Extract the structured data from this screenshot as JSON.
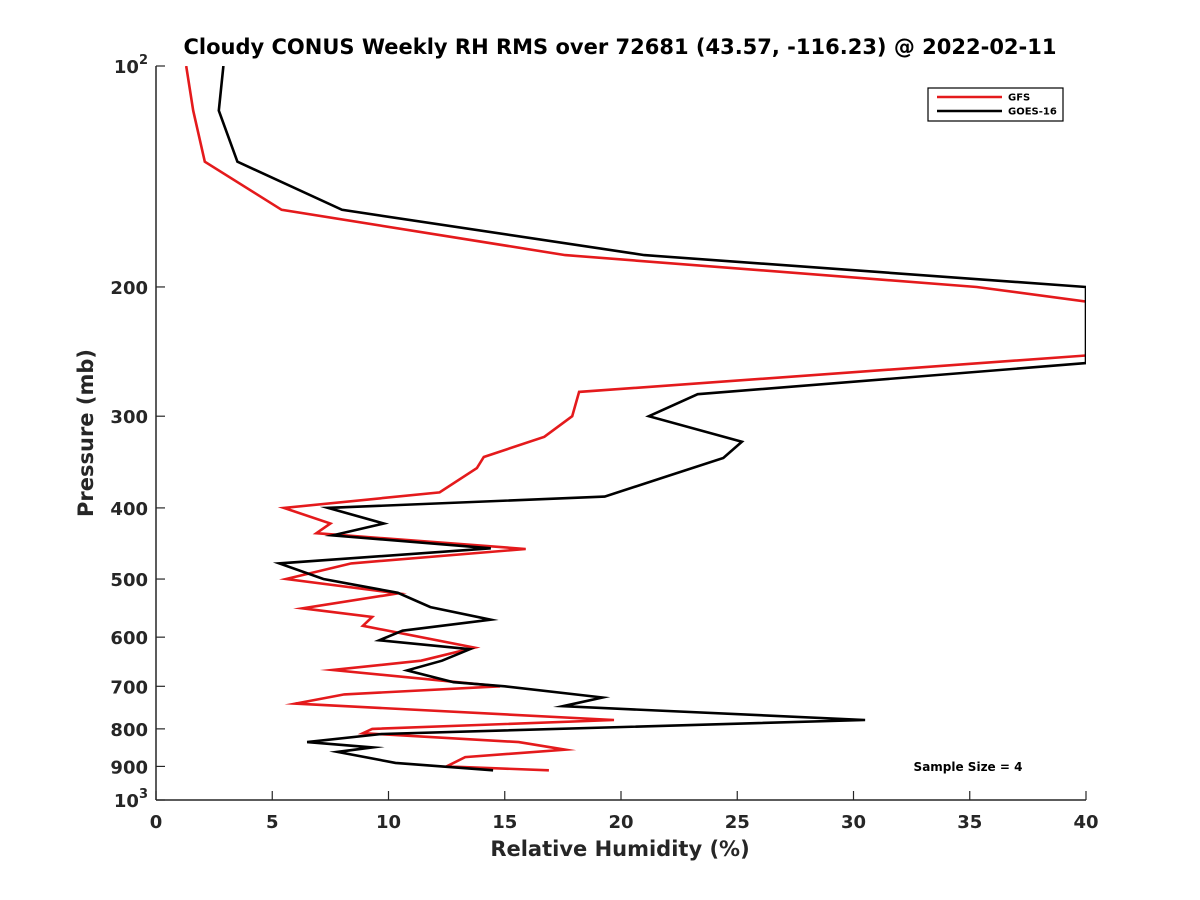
{
  "chart_data": {
    "type": "line",
    "title": "Cloudy CONUS Weekly RH RMS over 72681 (43.57, -116.23) @ 2022-02-11",
    "xlabel": "Relative Humidity (%)",
    "ylabel": "Pressure (mb)",
    "xlim": [
      0,
      40
    ],
    "ylim": [
      100,
      1000
    ],
    "yscale": "log",
    "y_reversed": true,
    "x_ticks": [
      "0",
      "5",
      "10",
      "15",
      "20",
      "25",
      "30",
      "35",
      "40"
    ],
    "y_ticks": [
      {
        "value": 100,
        "base": "10",
        "exp": "2"
      },
      {
        "value": 200,
        "label": "200"
      },
      {
        "value": 300,
        "label": "300"
      },
      {
        "value": 400,
        "label": "400"
      },
      {
        "value": 500,
        "label": "500"
      },
      {
        "value": 600,
        "label": "600"
      },
      {
        "value": 700,
        "label": "700"
      },
      {
        "value": 800,
        "label": "800"
      },
      {
        "value": 900,
        "label": "900"
      },
      {
        "value": 1000,
        "base": "10",
        "exp": "3"
      }
    ],
    "legend_position": "top-right",
    "annotation": "Sample Size = 4",
    "grid": false,
    "series": [
      {
        "name": "GFS",
        "color": "#e41a1c",
        "points": [
          [
            1.3,
            100
          ],
          [
            1.6,
            115
          ],
          [
            2.1,
            135
          ],
          [
            5.4,
            157
          ],
          [
            17.6,
            181
          ],
          [
            35.3,
            200
          ],
          [
            40.3,
            210
          ],
          [
            40.0,
            248
          ],
          [
            18.2,
            278
          ],
          [
            17.9,
            300
          ],
          [
            16.7,
            320
          ],
          [
            14.1,
            341
          ],
          [
            13.8,
            353
          ],
          [
            12.2,
            381
          ],
          [
            5.5,
            400
          ],
          [
            7.5,
            420
          ],
          [
            6.9,
            433
          ],
          [
            15.9,
            455
          ],
          [
            8.4,
            476
          ],
          [
            5.6,
            500
          ],
          [
            10.4,
            523
          ],
          [
            6.3,
            548
          ],
          [
            9.3,
            563
          ],
          [
            8.9,
            579
          ],
          [
            13.7,
            620
          ],
          [
            11.4,
            646
          ],
          [
            7.6,
            665
          ],
          [
            14.8,
            700
          ],
          [
            8.1,
            718
          ],
          [
            6.0,
            739
          ],
          [
            19.7,
            778
          ],
          [
            9.3,
            800
          ],
          [
            8.9,
            811
          ],
          [
            15.6,
            834
          ],
          [
            17.6,
            854
          ],
          [
            13.3,
            874
          ],
          [
            12.5,
            900
          ],
          [
            16.9,
            911
          ]
        ]
      },
      {
        "name": "GOES-16",
        "color": "#000000",
        "points": [
          [
            2.9,
            100
          ],
          [
            2.7,
            115
          ],
          [
            3.5,
            135
          ],
          [
            8.0,
            157
          ],
          [
            21.0,
            181
          ],
          [
            40.0,
            200
          ],
          [
            40.0,
            254
          ],
          [
            23.3,
            280
          ],
          [
            21.2,
            300
          ],
          [
            25.2,
            325
          ],
          [
            24.4,
            342
          ],
          [
            22.0,
            362
          ],
          [
            19.3,
            386
          ],
          [
            7.4,
            400
          ],
          [
            9.8,
            420
          ],
          [
            7.6,
            436
          ],
          [
            14.4,
            454
          ],
          [
            5.3,
            476
          ],
          [
            7.2,
            500
          ],
          [
            10.4,
            522
          ],
          [
            11.8,
            546
          ],
          [
            14.4,
            568
          ],
          [
            10.6,
            588
          ],
          [
            9.6,
            606
          ],
          [
            13.5,
            623
          ],
          [
            12.3,
            646
          ],
          [
            10.8,
            666
          ],
          [
            12.8,
            691
          ],
          [
            15.0,
            700
          ],
          [
            19.2,
            725
          ],
          [
            17.5,
            745
          ],
          [
            30.5,
            778
          ],
          [
            9.7,
            813
          ],
          [
            6.5,
            834
          ],
          [
            9.3,
            848
          ],
          [
            7.8,
            860
          ],
          [
            10.3,
            890
          ],
          [
            14.5,
            911
          ]
        ]
      }
    ]
  }
}
